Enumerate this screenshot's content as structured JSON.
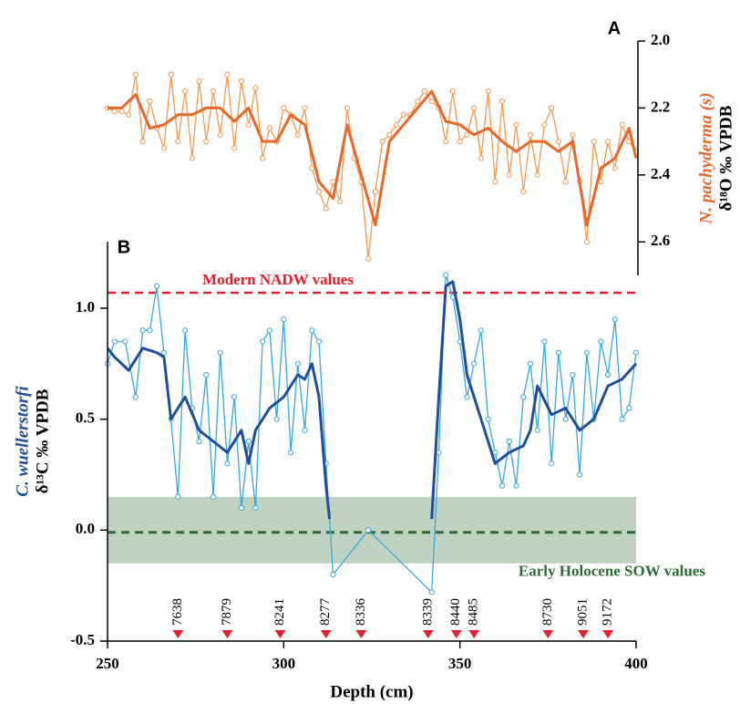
{
  "chart_data": [
    {
      "type": "line",
      "panel_label": "A",
      "y_label_italic": "N. pachyderma (s)",
      "y_label": "δ¹⁸O ‰ VPDB",
      "y_label_italic_color": "#e8672a",
      "yaxis_side": "right",
      "y_inverted": true,
      "xlim": [
        250,
        400
      ],
      "ylim": [
        2.0,
        2.7
      ],
      "yticks": [
        {
          "value": 2.0,
          "label": "2.0"
        },
        2.2,
        2.4,
        2.6
      ],
      "series": [
        {
          "color": "#f29a52",
          "width": 1.3,
          "markers": true,
          "x": [
            250,
            252,
            254,
            256,
            258,
            260,
            262,
            264,
            266,
            268,
            270,
            272,
            274,
            276,
            278,
            280,
            282,
            284,
            286,
            288,
            290,
            292,
            294,
            296,
            298,
            300,
            302,
            304,
            306,
            308,
            310,
            312,
            314,
            316,
            318,
            320,
            322,
            324,
            326,
            328,
            330,
            332,
            334,
            336,
            338,
            340,
            342,
            344,
            346,
            348,
            350,
            352,
            354,
            356,
            358,
            360,
            362,
            364,
            366,
            368,
            370,
            372,
            374,
            376,
            378,
            380,
            382,
            384,
            386,
            388,
            390,
            392,
            394,
            396,
            398,
            400
          ],
          "values": [
            2.2,
            2.21,
            2.21,
            2.22,
            2.1,
            2.3,
            2.18,
            2.26,
            2.32,
            2.1,
            2.3,
            2.15,
            2.35,
            2.12,
            2.3,
            2.15,
            2.28,
            2.1,
            2.32,
            2.12,
            2.25,
            2.14,
            2.35,
            2.26,
            2.3,
            2.2,
            2.22,
            2.28,
            2.2,
            2.38,
            2.45,
            2.5,
            2.42,
            2.48,
            2.2,
            2.35,
            2.42,
            2.65,
            2.45,
            2.3,
            2.28,
            2.25,
            2.22,
            2.22,
            2.18,
            2.15,
            2.18,
            2.2,
            2.3,
            2.15,
            2.3,
            2.28,
            2.2,
            2.35,
            2.15,
            2.42,
            2.18,
            2.4,
            2.25,
            2.45,
            2.28,
            2.4,
            2.25,
            2.2,
            2.3,
            2.42,
            2.28,
            2.42,
            2.6,
            2.3,
            2.42,
            2.3,
            2.38,
            2.25,
            2.3,
            2.33
          ]
        },
        {
          "color": "#e8672a",
          "width": 3,
          "markers": false,
          "x": [
            250,
            254,
            258,
            262,
            266,
            270,
            274,
            278,
            282,
            286,
            290,
            294,
            298,
            302,
            306,
            310,
            314,
            318,
            322,
            326,
            330,
            334,
            338,
            342,
            346,
            350,
            354,
            358,
            362,
            366,
            370,
            374,
            378,
            382,
            386,
            390,
            394,
            398,
            400
          ],
          "values": [
            2.2,
            2.2,
            2.16,
            2.26,
            2.25,
            2.22,
            2.22,
            2.2,
            2.2,
            2.24,
            2.2,
            2.3,
            2.3,
            2.22,
            2.25,
            2.42,
            2.47,
            2.25,
            2.4,
            2.55,
            2.3,
            2.25,
            2.2,
            2.15,
            2.24,
            2.25,
            2.28,
            2.26,
            2.3,
            2.33,
            2.3,
            2.3,
            2.33,
            2.3,
            2.55,
            2.38,
            2.35,
            2.26,
            2.35
          ]
        }
      ]
    },
    {
      "type": "line",
      "panel_label": "B",
      "x_label": "Depth (cm)",
      "y_label_italic": "C. wuellerstorfi",
      "y_label": "δ¹³C ‰ VPDB",
      "y_label_italic_color": "#1f4e9c",
      "yaxis_side": "left",
      "xlim": [
        250,
        400
      ],
      "ylim": [
        -0.5,
        1.3
      ],
      "xticks": [
        250,
        300,
        350,
        400
      ],
      "yticks": [
        -0.5,
        {
          "value": 0,
          "label": "0.0"
        },
        0.5,
        {
          "value": 1,
          "label": "1.0"
        }
      ],
      "series": [
        {
          "color": "#3aa8dc",
          "width": 1.3,
          "markers": true,
          "x": [
            250,
            252,
            255,
            258,
            260,
            262,
            264,
            266,
            268,
            270,
            272,
            274,
            276,
            278,
            280,
            282,
            284,
            286,
            288,
            290,
            292,
            294,
            296,
            298,
            300,
            302,
            304,
            306,
            308,
            310,
            312,
            314,
            324,
            342,
            344,
            346,
            348,
            350,
            352,
            354,
            356,
            358,
            360,
            362,
            364,
            366,
            368,
            370,
            372,
            374,
            376,
            378,
            380,
            382,
            384,
            386,
            388,
            390,
            392,
            394,
            396,
            398,
            400
          ],
          "values": [
            0.75,
            0.85,
            0.85,
            0.6,
            0.9,
            0.9,
            1.1,
            0.8,
            0.5,
            0.15,
            0.9,
            0.55,
            0.4,
            0.7,
            0.15,
            0.8,
            0.3,
            0.6,
            0.1,
            0.4,
            0.1,
            0.85,
            0.9,
            0.5,
            0.95,
            0.35,
            0.75,
            0.45,
            0.9,
            0.85,
            0.3,
            -0.2,
            0.0,
            -0.28,
            0.35,
            1.15,
            1.05,
            0.85,
            0.6,
            0.75,
            0.9,
            0.5,
            0.35,
            0.2,
            0.4,
            0.2,
            0.6,
            0.75,
            0.45,
            0.85,
            0.3,
            0.8,
            0.5,
            0.7,
            0.25,
            0.8,
            0.5,
            0.85,
            0.7,
            0.95,
            0.5,
            0.55,
            0.8
          ]
        },
        {
          "color": "#1f4e9c",
          "width": 3,
          "markers": false,
          "x": [
            250,
            252,
            256,
            260,
            264,
            266,
            268,
            272,
            276,
            280,
            284,
            288,
            290,
            292,
            296,
            300,
            304,
            306,
            308,
            310,
            312,
            313,
            325,
            342,
            344,
            346,
            348,
            350,
            352,
            356,
            358,
            360,
            364,
            368,
            370,
            372,
            376,
            380,
            384,
            388,
            392,
            396,
            400
          ],
          "values": [
            0.82,
            0.78,
            0.72,
            0.82,
            0.8,
            0.78,
            0.5,
            0.6,
            0.45,
            0.4,
            0.35,
            0.45,
            0.3,
            0.45,
            0.55,
            0.6,
            0.7,
            0.68,
            0.75,
            0.6,
            0.2,
            0.05,
            null,
            0.05,
            0.6,
            1.1,
            1.12,
            0.95,
            0.7,
            0.5,
            0.4,
            0.3,
            0.35,
            0.38,
            0.45,
            0.65,
            0.52,
            0.55,
            0.45,
            0.5,
            0.65,
            0.68,
            0.75
          ]
        }
      ],
      "reference_line": {
        "value": 1.07,
        "label": "Modern NADW values",
        "color": "#e0202a"
      },
      "band": {
        "range": [
          -0.15,
          0.15
        ],
        "center": -0.01,
        "label": "Early Holocene SOW values",
        "color": "#2e6b35"
      },
      "age_markers": {
        "x": [
          270,
          284,
          299,
          312,
          322,
          341,
          349,
          354,
          375,
          385,
          392
        ],
        "labels": [
          "7638",
          "7879",
          "8241",
          "8277",
          "8336",
          "8339",
          "8440",
          "8485",
          "8730",
          "9051",
          "9172"
        ],
        "color": "#e8202a"
      }
    }
  ]
}
